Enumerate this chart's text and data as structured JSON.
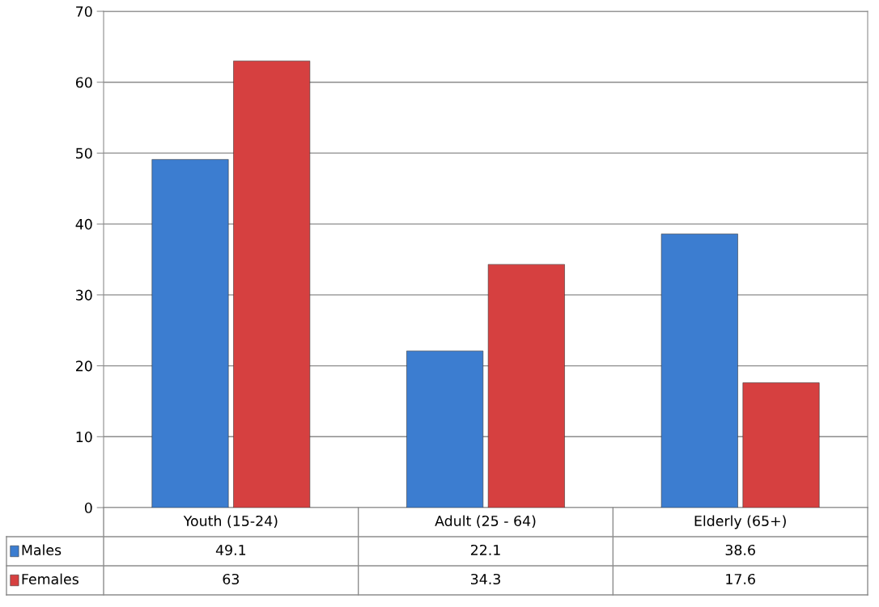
{
  "chart_data": {
    "type": "bar",
    "categories": [
      "Youth (15-24)",
      "Adult (25 - 64)",
      "Elderly (65+)"
    ],
    "series": [
      {
        "name": "Males",
        "color": "#3c7dd0",
        "values": [
          49.1,
          22.1,
          38.6
        ]
      },
      {
        "name": "Females",
        "color": "#d64040",
        "values": [
          63,
          34.3,
          17.6
        ]
      }
    ],
    "ylim": [
      0,
      70
    ],
    "yticks": [
      0,
      10,
      20,
      30,
      40,
      50,
      60,
      70
    ],
    "grid": "y",
    "data_labels": true,
    "legend": "bottom left"
  }
}
